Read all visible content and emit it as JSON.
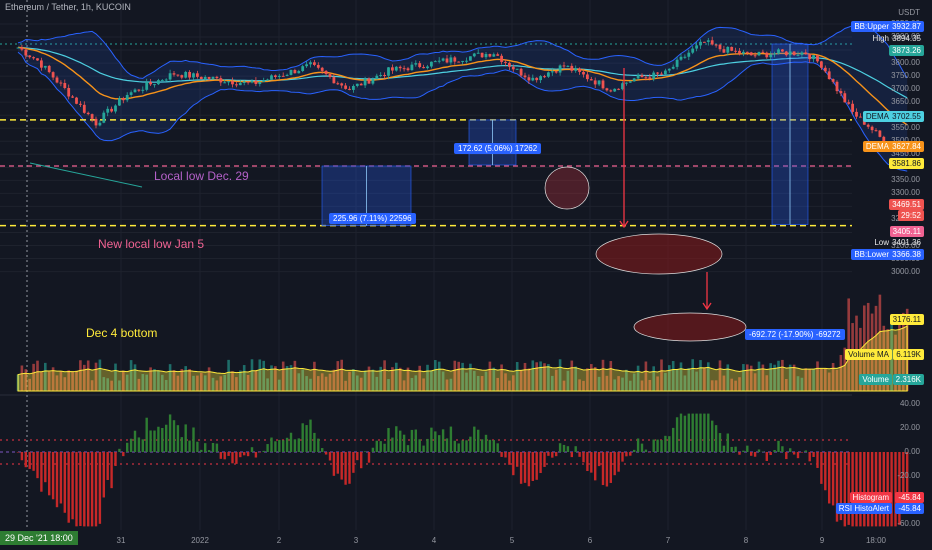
{
  "header": {
    "title": "Ethereum / Tether, 1h, KUCOIN"
  },
  "colors": {
    "bg": "#131722",
    "up": "#26a69a",
    "down": "#ef5350",
    "bb": "#2962ff",
    "ma_orange": "#f7931a",
    "ma_teal": "#4dd0e1",
    "dashed_yellow": "#ffeb3b",
    "dashed_red": "#f23645",
    "measure": "#2962ff",
    "arrow": "#f23645",
    "rsi": "#7e57c2"
  },
  "price_axis": {
    "unit": "USDT",
    "ticks": [
      "3950.00",
      "3900.00",
      "3850.00",
      "3800.00",
      "3750.00",
      "3700.00",
      "3650.00",
      "3600.00",
      "3550.00",
      "3500.00",
      "3450.00",
      "3400.00",
      "3350.00",
      "3300.00",
      "3250.00",
      "3200.00",
      "3150.00",
      "3100.00",
      "3050.00",
      "3000.00"
    ]
  },
  "price_badges": [
    {
      "label": "BB:Upper",
      "value": "3932.87",
      "color": "#2962ff"
    },
    {
      "label": "High",
      "value": "3894.35",
      "color": ""
    },
    {
      "label": "",
      "value": "3873.26",
      "color": "#26a69a"
    },
    {
      "label": "DEMA",
      "value": "3702.55",
      "color": "#4dd0e1"
    },
    {
      "label": "DEMA",
      "value": "3627.84",
      "color": "#f7931a"
    },
    {
      "label": "",
      "value": "3581.86",
      "color": "#ffeb3b"
    },
    {
      "label": "",
      "value": "3469.51",
      "color": "#ef5350"
    },
    {
      "label": "",
      "value": "29:52",
      "color": "#ef5350"
    },
    {
      "label": "",
      "value": "3405.11",
      "color": "#f06292"
    },
    {
      "label": "Low",
      "value": "3401.36",
      "color": ""
    },
    {
      "label": "BB:Lower",
      "value": "3366.38",
      "color": "#2962ff"
    },
    {
      "label": "",
      "value": "3176.11",
      "color": "#ffeb3b"
    },
    {
      "label": "Volume MA",
      "value": "6.119K",
      "color": "#ffeb3b"
    },
    {
      "label": "Volume",
      "value": "2.316K",
      "color": "#26a69a"
    }
  ],
  "osc_axis": {
    "ticks": [
      "40.00",
      "20.00",
      "0.00",
      "-20.00",
      "-40.00",
      "-60.00"
    ]
  },
  "osc_badges": [
    {
      "label": "Histogram",
      "value": "-45.84",
      "color": "#f23645"
    },
    {
      "label": "RSI HistoAlert",
      "value": "-45.84",
      "color": "#2962ff"
    }
  ],
  "time_axis": {
    "cursor_label": "29 Dec '21   18:00",
    "ticks": [
      "31",
      "2022",
      "2",
      "3",
      "4",
      "5",
      "6",
      "7",
      "8",
      "9",
      "18:00"
    ]
  },
  "annotations": {
    "local_low": "Local low Dec. 29",
    "new_low": "New local low Jan 5",
    "dec4": "Dec 4 bottom",
    "measure1": "172.62 (5.06%) 17262",
    "measure2": "225.96 (7.11%) 22596",
    "measure3": "-692.72 (-17.90%) -69272"
  },
  "chart_data": {
    "type": "candlestick",
    "title": "Ethereum / Tether, 1h, KUCOIN",
    "price_range": [
      3000,
      3975
    ],
    "levels": [
      {
        "name": "Local low Dec. 29",
        "value": 3581.86
      },
      {
        "name": "New local low Jan 5",
        "value": 3405.11
      },
      {
        "name": "Dec 4 bottom",
        "value": 3176.11
      }
    ],
    "high": 3894.35,
    "low": 3401.36,
    "last": 3469.51,
    "dema": [
      3702.55,
      3627.84
    ],
    "bb_upper": 3932.87,
    "bb_lower": 3366.38,
    "volume": 2316,
    "volume_ma": 6119,
    "histogram": -45.84,
    "rsi_histoalert": -45.84
  }
}
